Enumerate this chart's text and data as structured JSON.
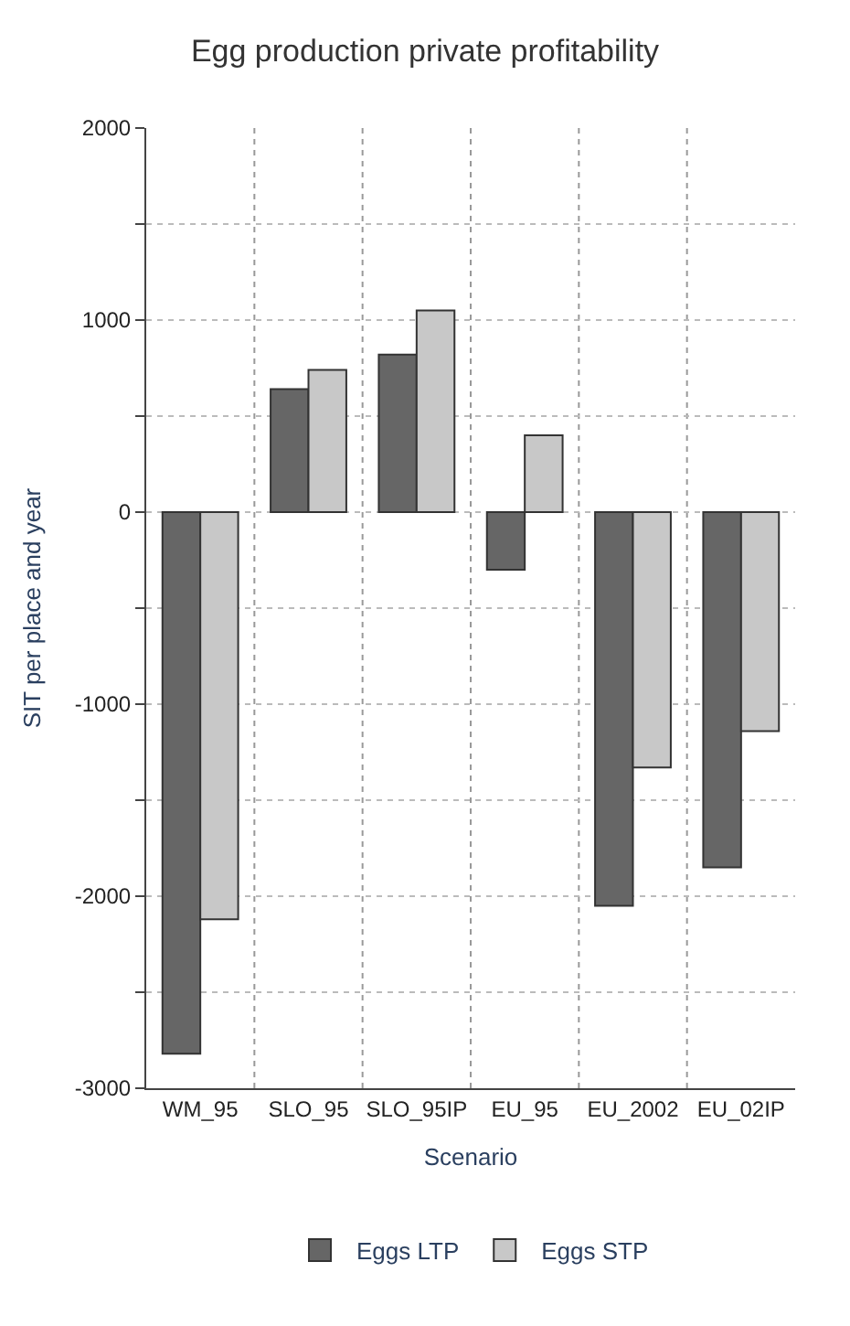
{
  "chart_data": {
    "type": "bar",
    "title": "Egg production private profitability",
    "xlabel": "Scenario",
    "ylabel": "SIT per place and year",
    "categories": [
      "WM_95",
      "SLO_95",
      "SLO_95IP",
      "EU_95",
      "EU_2002",
      "EU_02IP"
    ],
    "series": [
      {
        "name": "Eggs LTP",
        "color": "#666666",
        "values": [
          -2820,
          640,
          820,
          -300,
          -2050,
          -1850
        ]
      },
      {
        "name": "Eggs STP",
        "color": "#c8c8c8",
        "values": [
          -2120,
          740,
          1050,
          400,
          -1330,
          -1140
        ]
      }
    ],
    "ylim": [
      -3000,
      2000
    ],
    "yticks": [
      -3000,
      {
        "value": -2500,
        "label": null
      },
      -2000,
      {
        "value": -1500,
        "label": null
      },
      -1000,
      {
        "value": -500,
        "label": null
      },
      0,
      {
        "value": 500,
        "label": null
      },
      1000,
      {
        "value": 1500,
        "label": null
      },
      2000
    ],
    "grid": true,
    "legend": "bottom"
  }
}
